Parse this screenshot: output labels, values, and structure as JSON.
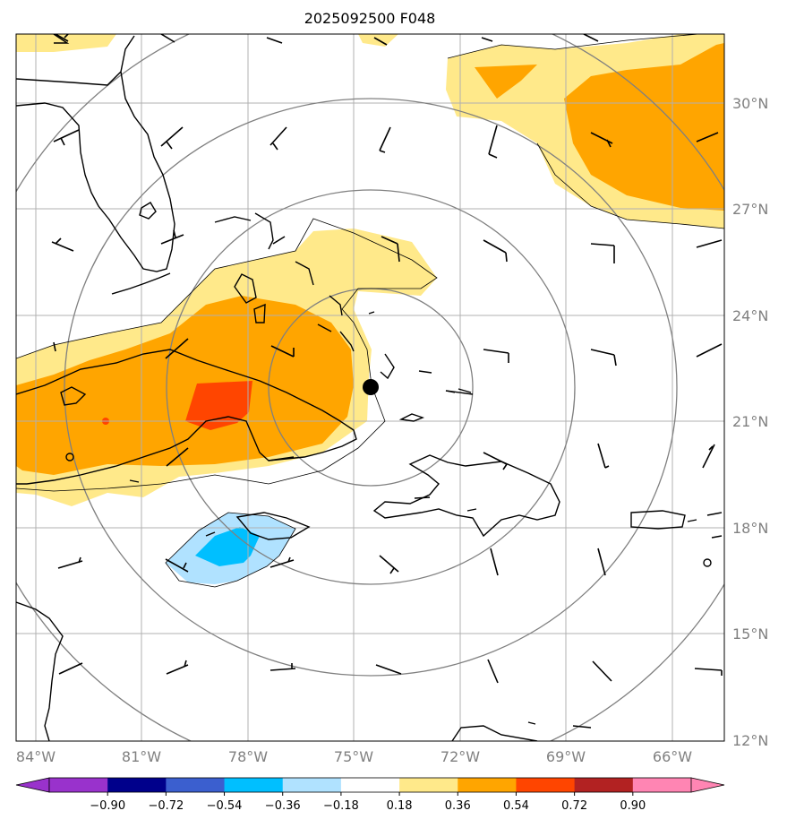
{
  "title": "2025092500 F048",
  "axes": {
    "lon_labels": [
      "84°W",
      "81°W",
      "78°W",
      "75°W",
      "72°W",
      "69°W",
      "66°W"
    ],
    "lon_values": [
      -84,
      -81,
      -78,
      -75,
      -72,
      -69,
      -66
    ],
    "lat_labels": [
      "30°N",
      "27°N",
      "24°N",
      "21°N",
      "18°N",
      "15°N",
      "12°N"
    ],
    "lat_values": [
      30,
      27,
      24,
      21,
      18,
      15,
      12
    ],
    "lon_range": [
      -84.3,
      -64.3
    ],
    "lat_range": [
      12,
      32
    ],
    "label_color": "#808080"
  },
  "colorbar": {
    "ticks": [
      "−0.90",
      "−0.72",
      "−0.54",
      "−0.36",
      "−0.18",
      "0.18",
      "0.36",
      "0.54",
      "0.72",
      "0.90"
    ],
    "colors": [
      "#9932cc",
      "#9932cc",
      "#00008b",
      "#3b5fcf",
      "#00bfff",
      "#b0e2ff",
      "#ffffff",
      "#ffe98a",
      "#ffa500",
      "#ff4500",
      "#b22222",
      "#ff85b3",
      "#ff85b3"
    ],
    "segment_colors": [
      "#9932cc",
      "#00008b",
      "#3b5fcf",
      "#00bfff",
      "#b0e2ff",
      "#ffffff",
      "#ffe98a",
      "#ffa500",
      "#ff4500",
      "#b22222",
      "#ff85b3"
    ]
  },
  "storm_center": {
    "lon": -74.5,
    "lat": 22.0,
    "color": "#000000"
  },
  "range_rings_color": "#808080",
  "contour_colors": {
    "light_yellow": "#ffe98a",
    "orange": "#ffa500",
    "red_orange": "#ff4500",
    "light_blue": "#b0e2ff",
    "blue": "#00bfff"
  }
}
